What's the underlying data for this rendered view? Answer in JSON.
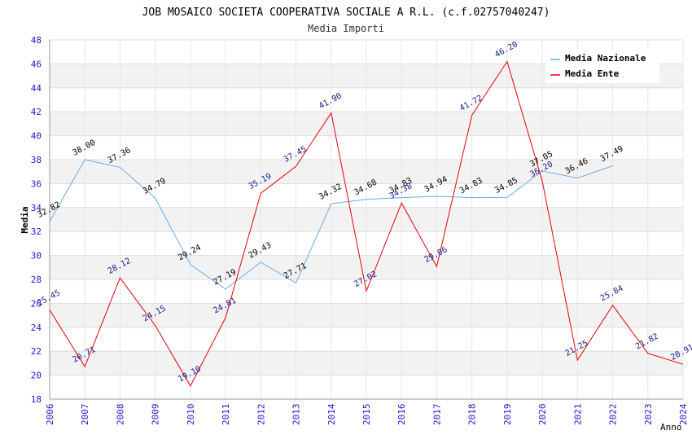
{
  "chart_data": {
    "type": "line",
    "title": "JOB MOSAICO SOCIETA COOPERATIVA SOCIALE A R.L. (c.f.02757040247)",
    "subtitle": "Media Importi",
    "ylabel": "Media",
    "xlabel": "Anno",
    "ylim": [
      18,
      48
    ],
    "yticks": [
      18,
      20,
      22,
      24,
      26,
      28,
      30,
      32,
      34,
      36,
      38,
      40,
      42,
      44,
      46,
      48
    ],
    "x": [
      "2006",
      "2007",
      "2008",
      "2009",
      "2010",
      "2011",
      "2012",
      "2013",
      "2014",
      "2015",
      "2016",
      "2017",
      "2018",
      "2019",
      "2020",
      "2021",
      "2022",
      "2023",
      "2024"
    ],
    "series": [
      {
        "name": "Media Nazionale",
        "color": "#6aaee8",
        "values": [
          32.82,
          38.0,
          37.36,
          34.79,
          29.24,
          27.19,
          29.43,
          27.71,
          34.32,
          34.68,
          34.83,
          34.94,
          34.83,
          34.85,
          37.05,
          36.46,
          37.49,
          null,
          null
        ],
        "labels": [
          "32.82",
          "38.00",
          "37.36",
          "34.79",
          "29.24",
          "27.19",
          "29.43",
          "27.71",
          "34.32",
          "34.68",
          "34.83",
          "34.94",
          "34.83",
          "34.85",
          "37.05",
          "36.46",
          "37.49",
          null,
          null
        ]
      },
      {
        "name": "Media Ente",
        "color": "#e8000b",
        "values": [
          25.45,
          20.71,
          28.12,
          24.15,
          19.1,
          24.81,
          35.19,
          37.45,
          41.9,
          27.02,
          34.38,
          29.06,
          41.72,
          46.2,
          36.2,
          21.25,
          25.84,
          21.82,
          20.91
        ],
        "labels": [
          "25.45",
          "20.71",
          "28.12",
          "24.15",
          "19.10",
          "24.81",
          "35.19",
          "37.45",
          "41.90",
          "27.02",
          "34.38",
          "29.06",
          "41.72",
          "46.20",
          "36.20",
          "21.25",
          "25.84",
          "21.82",
          "20.91"
        ]
      }
    ],
    "grid": true,
    "legend": "top-right"
  }
}
